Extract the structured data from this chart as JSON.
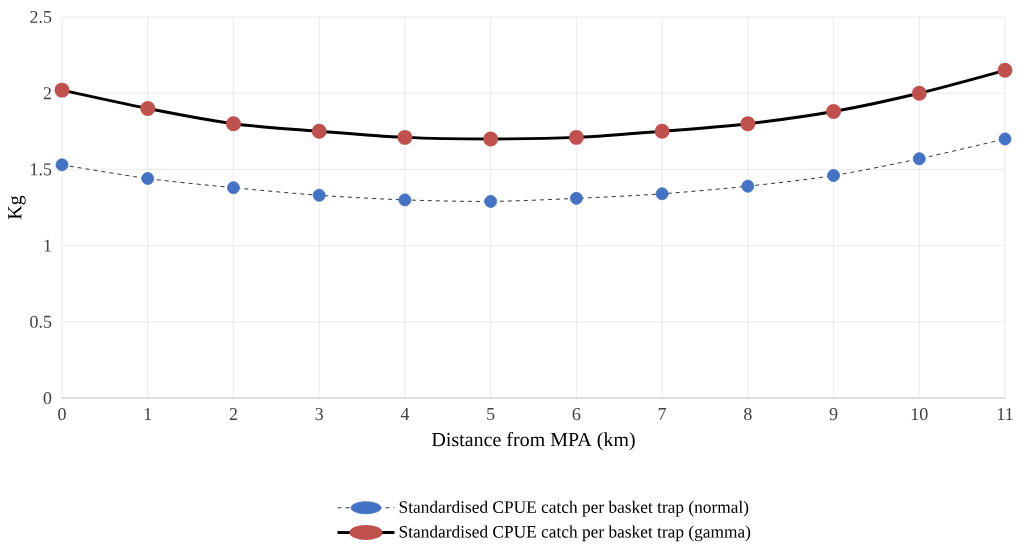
{
  "chart_data": {
    "type": "line",
    "ylabel": "Kg",
    "xlabel": "Distance from MPA (km)",
    "x": [
      0,
      1,
      2,
      3,
      4,
      5,
      6,
      7,
      8,
      9,
      10,
      11
    ],
    "xlim": [
      0,
      11
    ],
    "xticks": [
      0,
      1,
      2,
      3,
      4,
      5,
      6,
      7,
      8,
      9,
      10,
      11
    ],
    "ylim": [
      0,
      2.5
    ],
    "yticks": [
      0,
      0.5,
      1,
      1.5,
      2,
      2.5
    ],
    "grid": true,
    "legend": "bottom",
    "marker": "circle",
    "series": [
      {
        "name": "Standardised CPUE catch per basket trap (normal)",
        "color": "#4472c4",
        "line_style": "dashed",
        "values": [
          1.53,
          1.44,
          1.38,
          1.33,
          1.3,
          1.29,
          1.31,
          1.34,
          1.39,
          1.46,
          1.57,
          1.7
        ]
      },
      {
        "name": "Standardised CPUE catch per basket trap (gamma)",
        "color": "#c0504d",
        "line_style": "solid",
        "values": [
          2.02,
          1.9,
          1.8,
          1.75,
          1.71,
          1.7,
          1.71,
          1.75,
          1.8,
          1.88,
          2.0,
          2.15
        ]
      }
    ]
  }
}
